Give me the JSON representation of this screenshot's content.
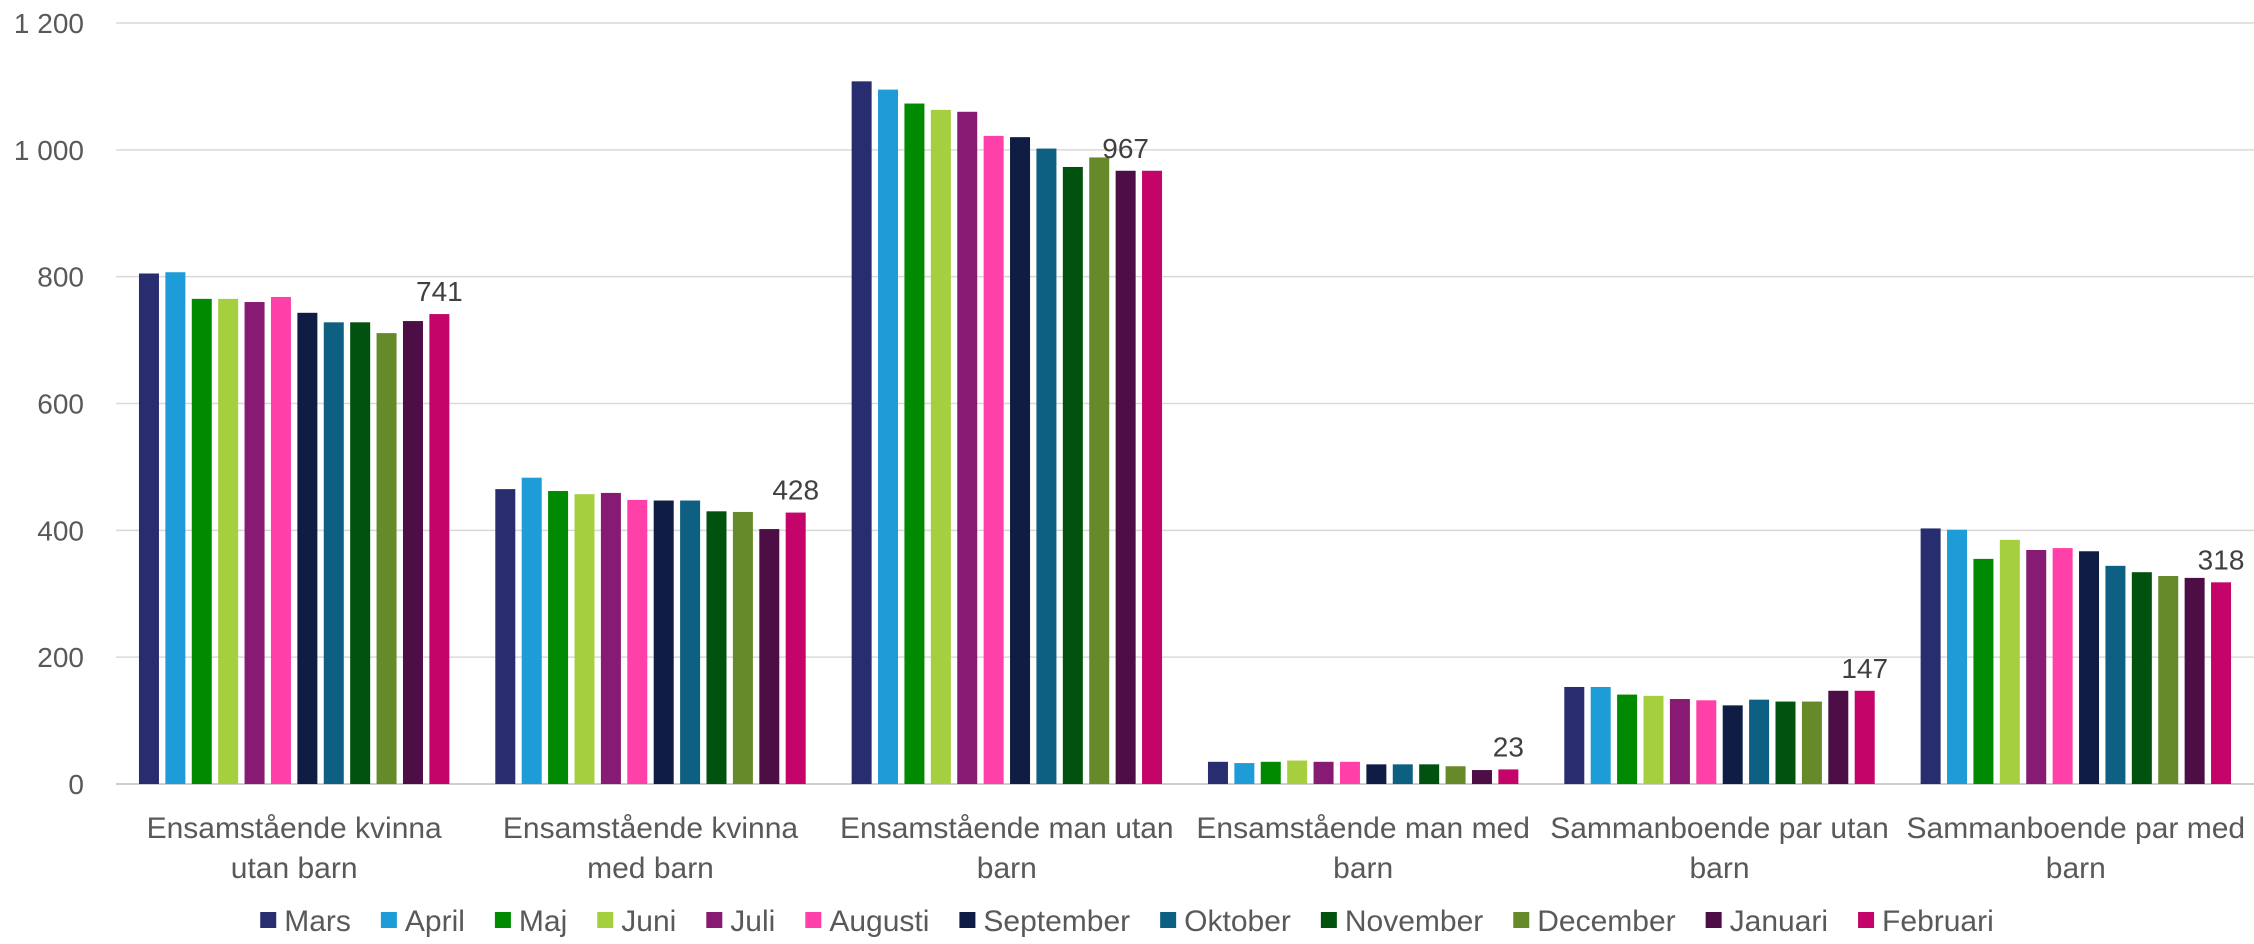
{
  "chart_data": {
    "type": "bar",
    "categories": [
      [
        "Ensamstående kvinna",
        "utan barn"
      ],
      [
        "Ensamstående kvinna",
        "med barn"
      ],
      [
        "Ensamstående man utan",
        "barn"
      ],
      [
        "Ensamstående man med",
        "barn"
      ],
      [
        "Sammanboende par utan",
        "barn"
      ],
      [
        "Sammanboende par med",
        "barn"
      ]
    ],
    "ylim": [
      0,
      1200
    ],
    "yticks": [
      0,
      200,
      400,
      600,
      800,
      1000,
      1200
    ],
    "ytick_labels": [
      "0",
      "200",
      "400",
      "600",
      "800",
      "1 000",
      "1 200"
    ],
    "grid": true,
    "legend_position": "bottom",
    "series": [
      {
        "name": "Mars",
        "color": "#272D6E",
        "values": [
          805,
          465,
          1108,
          35,
          153,
          403
        ]
      },
      {
        "name": "April",
        "color": "#1E9CD8",
        "values": [
          807,
          483,
          1095,
          33,
          153,
          401
        ]
      },
      {
        "name": "Maj",
        "color": "#008A00",
        "values": [
          765,
          462,
          1073,
          35,
          141,
          355
        ]
      },
      {
        "name": "Juni",
        "color": "#A5CF3F",
        "values": [
          765,
          457,
          1063,
          37,
          139,
          385
        ]
      },
      {
        "name": "Juli",
        "color": "#871A73",
        "values": [
          760,
          459,
          1060,
          35,
          134,
          369
        ]
      },
      {
        "name": "Augusti",
        "color": "#FF40A8",
        "values": [
          768,
          448,
          1022,
          35,
          132,
          372
        ]
      },
      {
        "name": "September",
        "color": "#0F1D45",
        "values": [
          743,
          447,
          1020,
          31,
          124,
          367
        ]
      },
      {
        "name": "Oktober",
        "color": "#0D6082",
        "values": [
          728,
          447,
          1002,
          31,
          133,
          344
        ]
      },
      {
        "name": "November",
        "color": "#00520E",
        "values": [
          728,
          430,
          973,
          31,
          130,
          334
        ]
      },
      {
        "name": "December",
        "color": "#66892A",
        "values": [
          711,
          429,
          988,
          28,
          130,
          328
        ]
      },
      {
        "name": "Januari",
        "color": "#4D0D45",
        "values": [
          730,
          402,
          967,
          22,
          147,
          325
        ]
      },
      {
        "name": "Februari",
        "color": "#C40468",
        "values": [
          741,
          428,
          967,
          23,
          147,
          318
        ]
      }
    ],
    "data_labels": [
      {
        "category_index": 0,
        "series_index": 11,
        "text": "741"
      },
      {
        "category_index": 1,
        "series_index": 11,
        "text": "428"
      },
      {
        "category_index": 2,
        "series_index": 10,
        "text": "967"
      },
      {
        "category_index": 3,
        "series_index": 11,
        "text": "23"
      },
      {
        "category_index": 4,
        "series_index": 11,
        "text": "147"
      },
      {
        "category_index": 5,
        "series_index": 11,
        "text": "318"
      }
    ],
    "colors": {
      "grid": "#D9D9D9",
      "axis": "#BFBFBF"
    }
  }
}
